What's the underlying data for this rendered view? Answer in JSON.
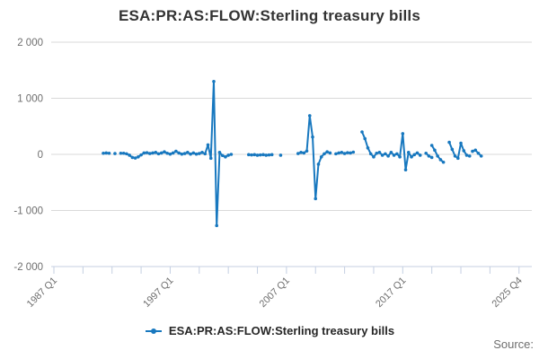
{
  "header": {
    "title": "ESA:PR:AS:FLOW:Sterling treasury bills"
  },
  "legend": {
    "label": "ESA:PR:AS:FLOW:Sterling treasury bills",
    "marker_icon": "line-with-dot-icon"
  },
  "footer": {
    "source_label": "Source:"
  },
  "colors": {
    "series": "#1878bf",
    "grid": "#d9d9d9",
    "axis": "#c4cfe2",
    "axis_label": "#6e6e6e",
    "title_text": "#333333",
    "legend_text": "#262626"
  },
  "chart_data": {
    "type": "line",
    "title": "ESA:PR:AS:FLOW:Sterling treasury bills",
    "series_name": "ESA:PR:AS:FLOW:Sterling treasury bills",
    "legend_position": "bottom",
    "grid": "horizontal",
    "x_axis": {
      "start": "1987 Q1",
      "end": "2025 Q4",
      "unit": "quarter",
      "total_ticks": 17,
      "ticks_per_label": 4,
      "tick_labels": [
        "1987 Q1",
        "1997 Q1",
        "2007 Q1",
        "2017 Q1",
        "2025 Q4"
      ]
    },
    "y_axis": {
      "min": -2000,
      "max": 2000,
      "tick_values": [
        2000,
        1000,
        0,
        -1000,
        -2000
      ],
      "tick_labels": [
        "2 000",
        "1 000",
        "0",
        "-1 000",
        "-2 000"
      ]
    },
    "segments": [
      {
        "start": "1991 Q2",
        "values": [
          20,
          25,
          20
        ]
      },
      {
        "start": "1992 Q2",
        "values": [
          15
        ]
      },
      {
        "start": "1992 Q4",
        "values": [
          20,
          20,
          10,
          -15,
          -55,
          -65,
          -45,
          -10,
          25,
          30,
          15,
          25,
          35,
          10,
          25,
          45,
          20,
          5,
          25,
          55,
          25,
          5,
          15,
          35,
          5,
          25,
          5,
          15,
          35,
          10,
          170,
          -70,
          1300,
          -1270,
          35,
          -20,
          -45,
          -15,
          0
        ]
      },
      {
        "start": "2003 Q4",
        "values": [
          -5,
          -10,
          -5,
          -15,
          -10,
          -5,
          -15,
          -10,
          -5
        ]
      },
      {
        "start": "2006 Q3",
        "values": [
          -15
        ]
      },
      {
        "start": "2008 Q1",
        "values": [
          15,
          35,
          25,
          60,
          690,
          310,
          -790,
          -175,
          -45,
          10,
          45,
          25
        ]
      },
      {
        "start": "2011 Q2",
        "values": [
          10,
          25,
          35,
          15,
          30,
          25,
          40
        ]
      },
      {
        "start": "2013 Q3",
        "values": [
          400,
          280,
          115,
          10,
          -45,
          20,
          35,
          -15,
          10,
          -30,
          35,
          -15,
          10,
          -45,
          370,
          -275,
          35,
          -45,
          -5,
          25,
          -15
        ]
      },
      {
        "start": "2019 Q1",
        "values": [
          20,
          -30,
          -55
        ]
      },
      {
        "start": "2019 Q3",
        "values": [
          160,
          75,
          -30,
          -95,
          -140
        ]
      },
      {
        "start": "2021 Q1",
        "values": [
          215,
          90,
          -30,
          -70,
          200,
          65,
          -15,
          -30
        ]
      },
      {
        "start": "2023 Q1",
        "values": [
          55,
          75,
          20,
          -30
        ]
      }
    ]
  }
}
